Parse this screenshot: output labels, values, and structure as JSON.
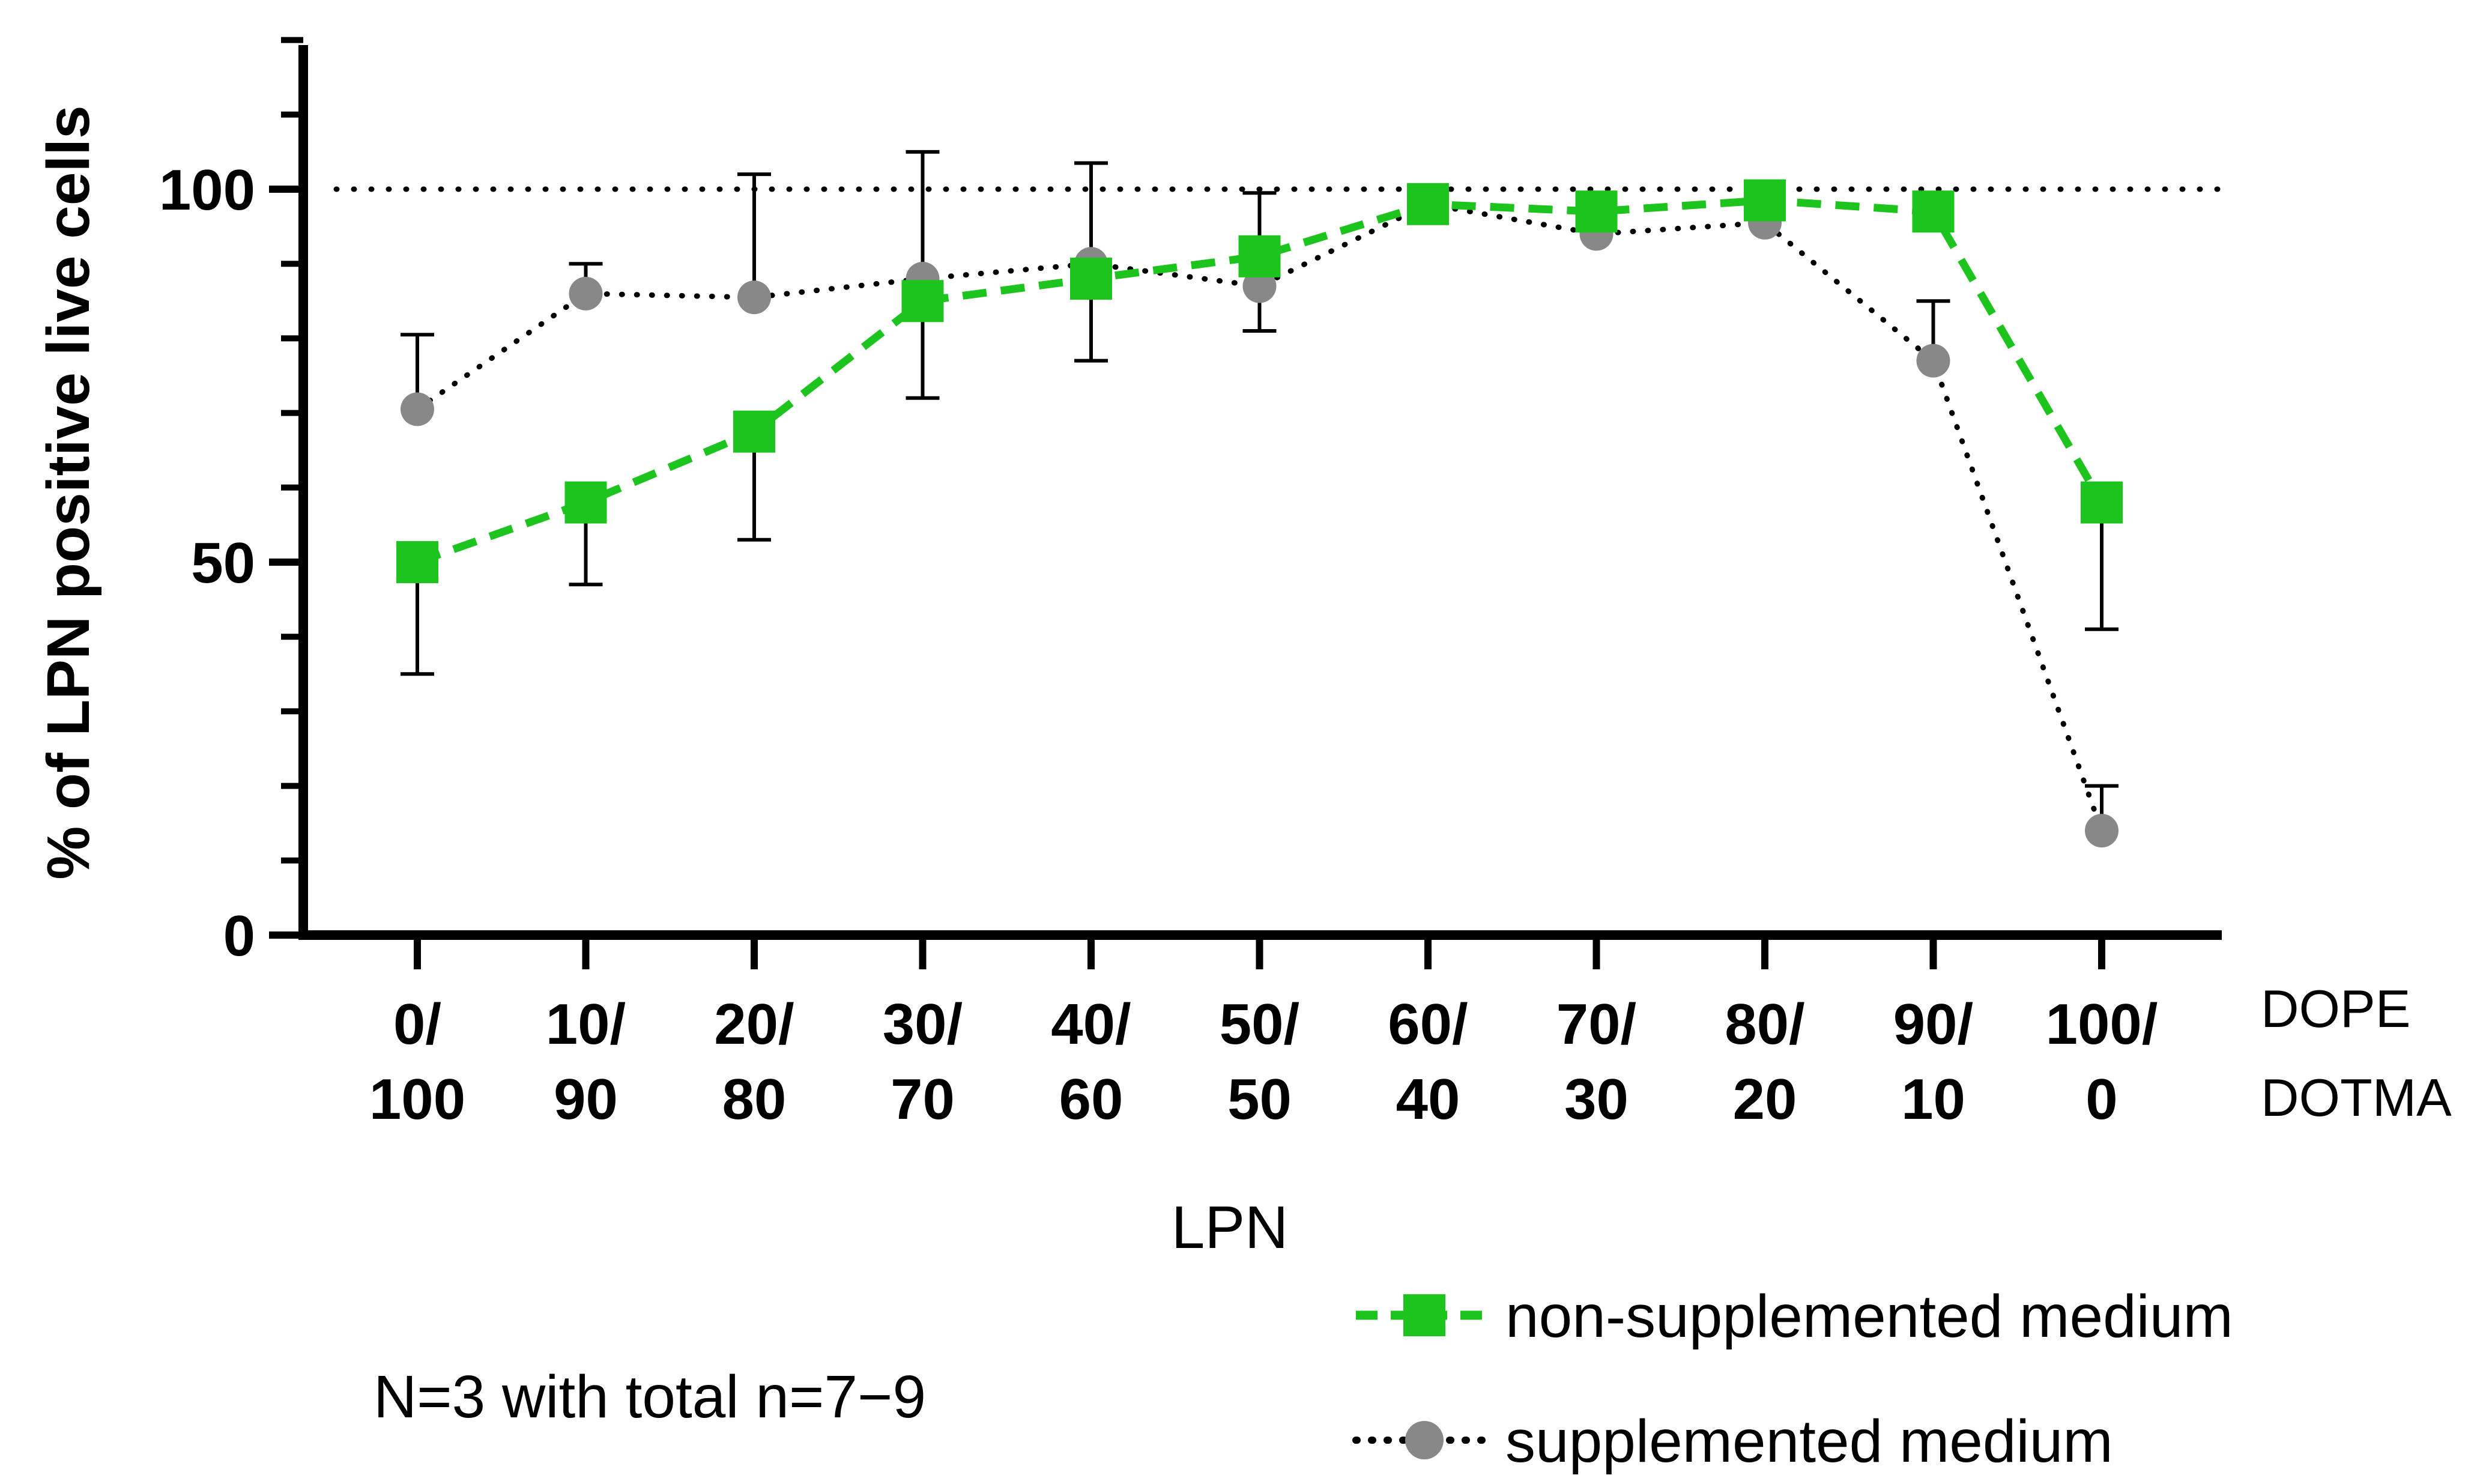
{
  "chart_data": {
    "type": "line",
    "ylabel": "% of LPN positive live cells",
    "xlabel": "LPN",
    "ylim": [
      0,
      120
    ],
    "yticks_major": [
      0,
      50,
      100
    ],
    "yticks_minor": [
      10,
      20,
      30,
      40,
      60,
      70,
      80,
      90,
      110,
      120
    ],
    "y_tick_labels": [
      "0",
      "50",
      "100"
    ],
    "categories": [
      "0/100",
      "10/90",
      "20/80",
      "30/70",
      "40/60",
      "50/50",
      "60/40",
      "70/30",
      "80/20",
      "90/10",
      "100/0"
    ],
    "category_labels": [
      {
        "top": "0/",
        "bottom": "100"
      },
      {
        "top": "10/",
        "bottom": "90"
      },
      {
        "top": "20/",
        "bottom": "80"
      },
      {
        "top": "30/",
        "bottom": "70"
      },
      {
        "top": "40/",
        "bottom": "60"
      },
      {
        "top": "50/",
        "bottom": "50"
      },
      {
        "top": "60/",
        "bottom": "40"
      },
      {
        "top": "70/",
        "bottom": "30"
      },
      {
        "top": "80/",
        "bottom": "20"
      },
      {
        "top": "90/",
        "bottom": "10"
      },
      {
        "top": "100/",
        "bottom": "0"
      }
    ],
    "composition_labels": {
      "top": "DOPE",
      "bottom": "DOTMA"
    },
    "reference_line": {
      "y": 100,
      "style": "dotted"
    },
    "legend_placement": "bottom-right",
    "series": [
      {
        "name": "non-supplemented medium",
        "color": "#1ec41e",
        "marker": "square",
        "line_style": "dashed",
        "values": [
          50,
          58,
          67.5,
          85,
          88,
          91,
          98,
          97,
          98.5,
          97,
          58
        ],
        "error_upper": [
          50,
          58,
          67.5,
          85,
          88,
          91,
          98,
          97,
          98.5,
          97,
          58
        ],
        "error_lower": [
          35,
          47,
          53,
          72,
          77,
          81,
          98,
          97,
          98.5,
          97,
          41
        ]
      },
      {
        "name": "supplemented medium",
        "color": "#888888",
        "marker": "circle",
        "line_style": "dotted",
        "values": [
          70.5,
          86,
          85.5,
          88,
          90,
          87,
          98,
          94,
          95.5,
          77,
          14
        ],
        "error_upper": [
          80.5,
          90,
          102,
          105,
          103.5,
          99.5,
          98,
          94,
          95.5,
          85,
          20
        ],
        "error_lower": [
          70.5,
          86,
          85.5,
          88,
          90,
          87,
          98,
          94,
          95.5,
          77,
          14
        ]
      }
    ],
    "annotation": "N=3 with total n=7−9"
  }
}
